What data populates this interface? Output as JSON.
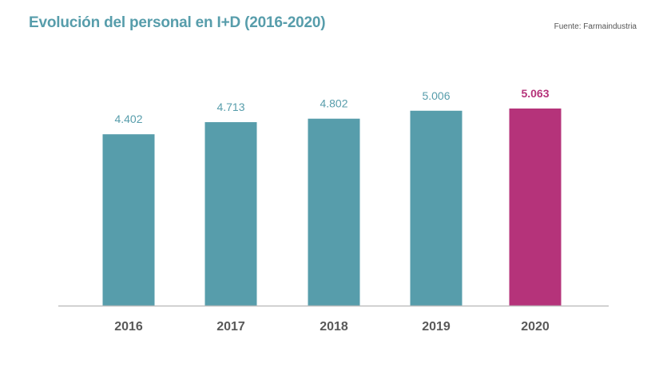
{
  "header": {
    "title": "Evolución del personal en I+D (2016-2020)",
    "source": "Fuente: Farmaindustria"
  },
  "colors": {
    "title": "#579dab",
    "bar": "#579dab",
    "highlight": "#b5337a",
    "axis": "#bfbfbf",
    "tick_label": "#595959"
  },
  "chart_data": {
    "type": "bar",
    "categories": [
      "2016",
      "2017",
      "2018",
      "2019",
      "2020"
    ],
    "values": [
      4402,
      4713,
      4802,
      5006,
      5063
    ],
    "value_labels": [
      "4.402",
      "4.713",
      "4.802",
      "5.006",
      "5.063"
    ],
    "highlight_index": 4,
    "title": "Evolución del personal en I+D (2016-2020)",
    "xlabel": "",
    "ylabel": "",
    "ylim": [
      0,
      5063
    ],
    "grid": false,
    "legend": "none"
  }
}
